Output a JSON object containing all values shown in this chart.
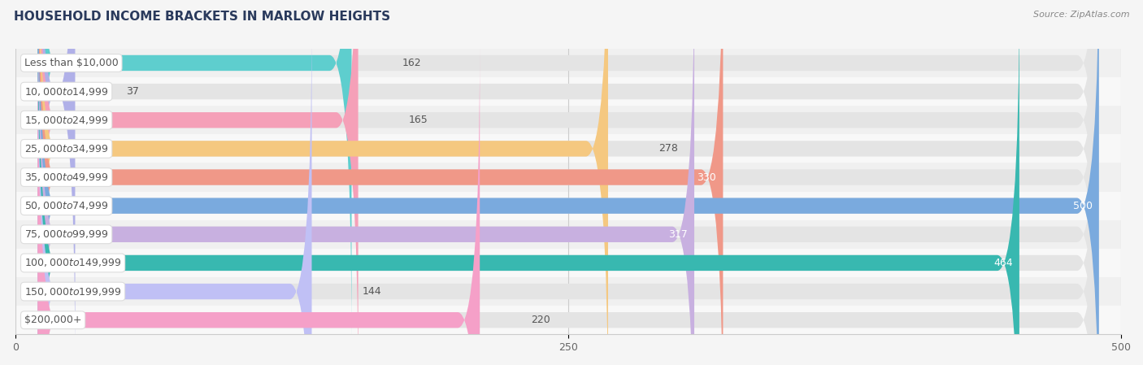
{
  "title": "HOUSEHOLD INCOME BRACKETS IN MARLOW HEIGHTS",
  "source": "Source: ZipAtlas.com",
  "categories": [
    "Less than $10,000",
    "$10,000 to $14,999",
    "$15,000 to $24,999",
    "$25,000 to $34,999",
    "$35,000 to $49,999",
    "$50,000 to $74,999",
    "$75,000 to $99,999",
    "$100,000 to $149,999",
    "$150,000 to $199,999",
    "$200,000+"
  ],
  "values": [
    162,
    37,
    165,
    278,
    330,
    500,
    317,
    464,
    144,
    220
  ],
  "bar_colors": [
    "#5ecece",
    "#b0b0e8",
    "#f5a0b8",
    "#f5c880",
    "#f09888",
    "#7aaade",
    "#c8b0e0",
    "#38b8b0",
    "#c0c0f5",
    "#f5a0c8"
  ],
  "bg_bar_color": "#e4e4e4",
  "row_bg_even": "#f0f0f0",
  "row_bg_odd": "#f8f8f8",
  "xlim_max": 500,
  "xticks": [
    0,
    250,
    500
  ],
  "background_color": "#f5f5f5",
  "title_fontsize": 11,
  "source_fontsize": 8,
  "tick_fontsize": 9,
  "value_fontsize": 9,
  "label_fontsize": 9,
  "inside_label_threshold": 280,
  "title_color": "#2a3a5c",
  "source_color": "#888888",
  "label_text_color": "#555555",
  "value_color_outside": "#555555",
  "value_color_inside": "#ffffff"
}
